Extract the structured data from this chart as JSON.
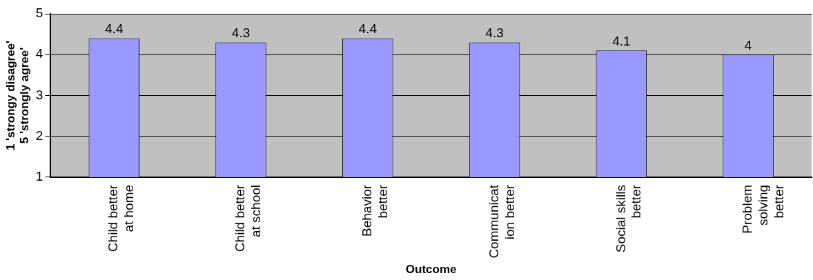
{
  "chart_data": {
    "type": "bar",
    "xlabel": "Outcome",
    "ylabel": "1 'strongy disagree'\n5 'strongly agree'",
    "categories": [
      "Child better\nat home",
      "Child better\nat school",
      "Behavior\nbetter",
      "Communicat\nion better",
      "Social skills\nbetter",
      "Problem\nsolving\nbetter"
    ],
    "values": [
      4.4,
      4.3,
      4.4,
      4.3,
      4.1,
      4
    ],
    "color": "#9999ff",
    "ylim": [
      1,
      5
    ],
    "yticks": [
      1,
      2,
      3,
      4,
      5
    ],
    "grid": "y",
    "legend": false,
    "data_labels": true
  }
}
